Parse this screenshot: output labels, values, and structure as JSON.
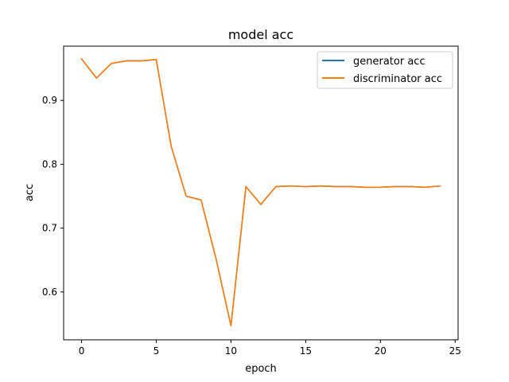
{
  "chart_data": {
    "type": "line",
    "title": "model acc",
    "xlabel": "epoch",
    "ylabel": "acc",
    "xlim": [
      -1.2,
      25.2
    ],
    "ylim": [
      0.525,
      0.985
    ],
    "x_ticks": [
      0,
      5,
      10,
      15,
      20,
      25
    ],
    "y_ticks": [
      0.6,
      0.7,
      0.8,
      0.9
    ],
    "x_tick_labels": [
      "0",
      "5",
      "10",
      "15",
      "20",
      "25"
    ],
    "y_tick_labels": [
      "0.6",
      "0.7",
      "0.8",
      "0.9"
    ],
    "grid": false,
    "legend_position": "top-right",
    "x": [
      0,
      1,
      2,
      3,
      4,
      5,
      6,
      7,
      8,
      9,
      10,
      11,
      12,
      13,
      14,
      15,
      16,
      17,
      18,
      19,
      20,
      21,
      22,
      23,
      24
    ],
    "series": [
      {
        "name": "generator acc",
        "color": "#1f77b4",
        "values": [
          0.965,
          0.935,
          0.958,
          0.962,
          0.962,
          0.964,
          0.828,
          0.75,
          0.744,
          0.652,
          0.547,
          0.765,
          0.737,
          0.765,
          0.766,
          0.765,
          0.766,
          0.765,
          0.765,
          0.764,
          0.764,
          0.765,
          0.765,
          0.764,
          0.766
        ]
      },
      {
        "name": "discriminator acc",
        "color": "#ff7f0e",
        "values": [
          0.965,
          0.935,
          0.958,
          0.962,
          0.962,
          0.964,
          0.828,
          0.75,
          0.744,
          0.652,
          0.547,
          0.765,
          0.737,
          0.765,
          0.766,
          0.765,
          0.766,
          0.765,
          0.765,
          0.764,
          0.764,
          0.765,
          0.765,
          0.764,
          0.766
        ]
      }
    ]
  }
}
